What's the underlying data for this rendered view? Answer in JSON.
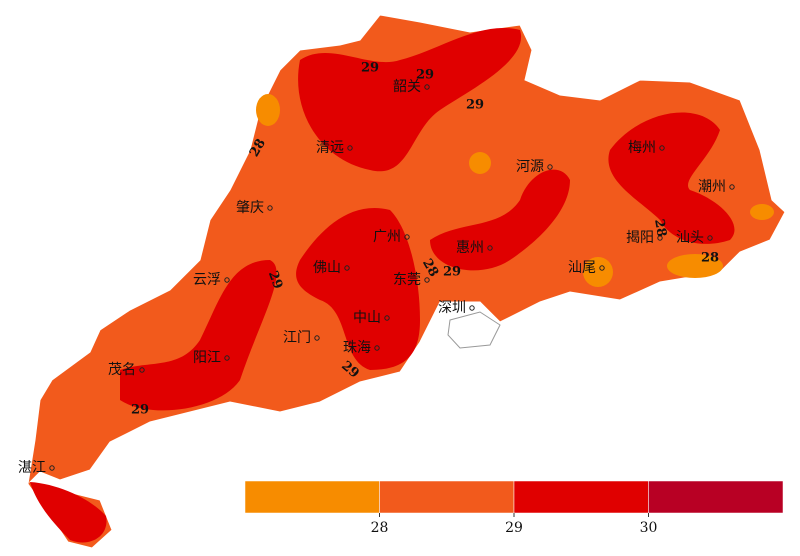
{
  "cities": [
    "韶关",
    "清远",
    "肇庆",
    "广州",
    "河源",
    "梅州",
    "潮州",
    "揭阳",
    "汕头",
    "惠州",
    "汕尾",
    "东莞",
    "深圳",
    "佛山",
    "云浮",
    "中山",
    "江门",
    "珠海",
    "阳江",
    "茂名",
    "湛江"
  ],
  "contour_labels": [
    29,
    29,
    29,
    28,
    29,
    29,
    28,
    29,
    29,
    28,
    28
  ],
  "legend": {
    "colors": [
      "#f78c00",
      "#f25a1c",
      "#e00000",
      "#b80024"
    ],
    "ticks": [
      28,
      29,
      30
    ]
  }
}
